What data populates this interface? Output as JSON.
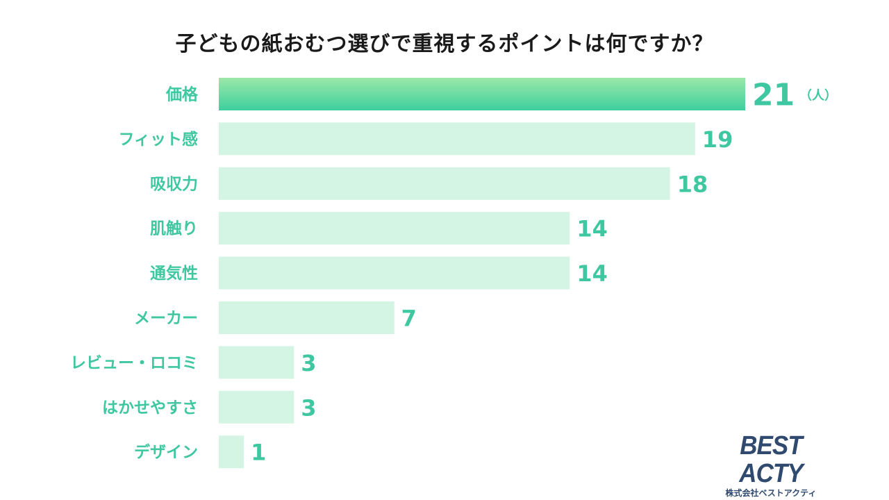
{
  "chart_data": {
    "type": "bar",
    "orientation": "horizontal",
    "title": "子どもの紙おむつ選びで重視するポイントは何ですか？",
    "categories": [
      "価格",
      "フィット感",
      "吸収力",
      "肌触り",
      "通気性",
      "メーカー",
      "レビュー・ロコミ",
      "はかせやすさ",
      "デザイン"
    ],
    "values": [
      21,
      19,
      18,
      14,
      14,
      7,
      3,
      3,
      1
    ],
    "unit": "（人）",
    "xlim": [
      0,
      21
    ],
    "grid": false,
    "legend": "none",
    "colors": {
      "highlight_top": "#9be8a8",
      "highlight_bottom": "#3ecf9e",
      "bar": "#d4f5e3",
      "label": "#3ec7a0"
    }
  },
  "logo": {
    "main": "BEST ACTY",
    "sub": "株式会社ベストアクティ"
  }
}
